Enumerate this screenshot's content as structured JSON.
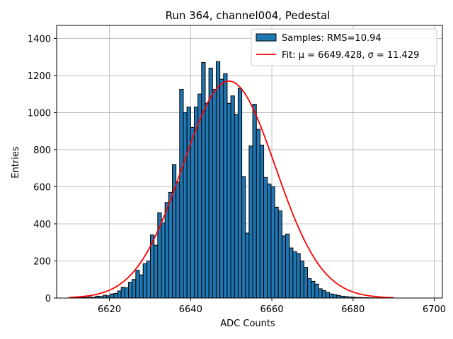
{
  "chart_data": {
    "type": "bar",
    "title": "Run 364, channel004, Pedestal",
    "xlabel": "ADC Counts",
    "ylabel": "Entries",
    "xlim": [
      6607,
      6702
    ],
    "ylim": [
      0,
      1470
    ],
    "x_ticks": [
      6620,
      6640,
      6660,
      6680,
      6700
    ],
    "y_ticks": [
      0,
      200,
      400,
      600,
      800,
      1000,
      1200,
      1400
    ],
    "grid": true,
    "legend_position": "top-right",
    "colors": {
      "bars": "#1f77b4",
      "bar_edge": "#000000",
      "fit": "#ff0000",
      "grid": "#b0b0b0"
    },
    "series": [
      {
        "name": "Samples: RMS=10.94",
        "type": "histogram",
        "bin_width": 0.9,
        "bin_starts": [
          6612.1,
          6613,
          6613.9,
          6614.8,
          6615.7,
          6616.6,
          6617.5,
          6618.4,
          6619.3,
          6620.2,
          6621.1,
          6622,
          6622.9,
          6623.8,
          6624.7,
          6625.6,
          6626.5,
          6627.4,
          6628.3,
          6629.2,
          6630.1,
          6631,
          6631.9,
          6632.8,
          6633.7,
          6634.6,
          6635.5,
          6636.4,
          6637.3,
          6638.2,
          6639.1,
          6640,
          6640.9,
          6641.8,
          6642.7,
          6643.6,
          6644.5,
          6645.4,
          6646.3,
          6647.2,
          6648.1,
          6649,
          6649.9,
          6650.8,
          6651.7,
          6652.6,
          6653.5,
          6654.4,
          6655.3,
          6656.2,
          6657.1,
          6658,
          6658.9,
          6659.8,
          6660.7,
          6661.6,
          6662.5,
          6663.4,
          6664.3,
          6665.2,
          6666.1,
          6667,
          6667.9,
          6668.8,
          6669.7,
          6670.6,
          6671.5,
          6672.4,
          6673.3,
          6674.2,
          6675.1,
          6676,
          6676.9,
          6677.8,
          6678.7,
          6679.6,
          6680.5,
          6681.4,
          6682.3,
          6683.2,
          6684.1,
          6685,
          6685.9,
          6686.8,
          6687.7
        ],
        "counts": [
          2,
          3,
          4,
          6,
          4,
          10,
          8,
          15,
          12,
          22,
          25,
          38,
          58,
          55,
          85,
          100,
          150,
          125,
          185,
          200,
          340,
          285,
          460,
          405,
          515,
          570,
          720,
          625,
          1125,
          1000,
          1030,
          920,
          1030,
          1100,
          1270,
          1050,
          1240,
          1125,
          1275,
          1180,
          1210,
          1050,
          1090,
          990,
          1130,
          655,
          350,
          820,
          1045,
          910,
          825,
          650,
          615,
          600,
          490,
          470,
          335,
          345,
          270,
          250,
          240,
          200,
          165,
          105,
          90,
          75,
          50,
          40,
          30,
          22,
          18,
          14,
          10,
          8,
          6,
          5,
          3,
          3,
          2,
          2,
          1,
          1,
          1,
          1,
          1
        ]
      },
      {
        "name": "Fit: μ = 6649.428, σ = 11.429",
        "type": "line",
        "model": "gaussian",
        "mu": 6649.428,
        "sigma": 11.429,
        "amplitude": 1170,
        "x_range": [
          6610,
          6690
        ]
      }
    ]
  }
}
